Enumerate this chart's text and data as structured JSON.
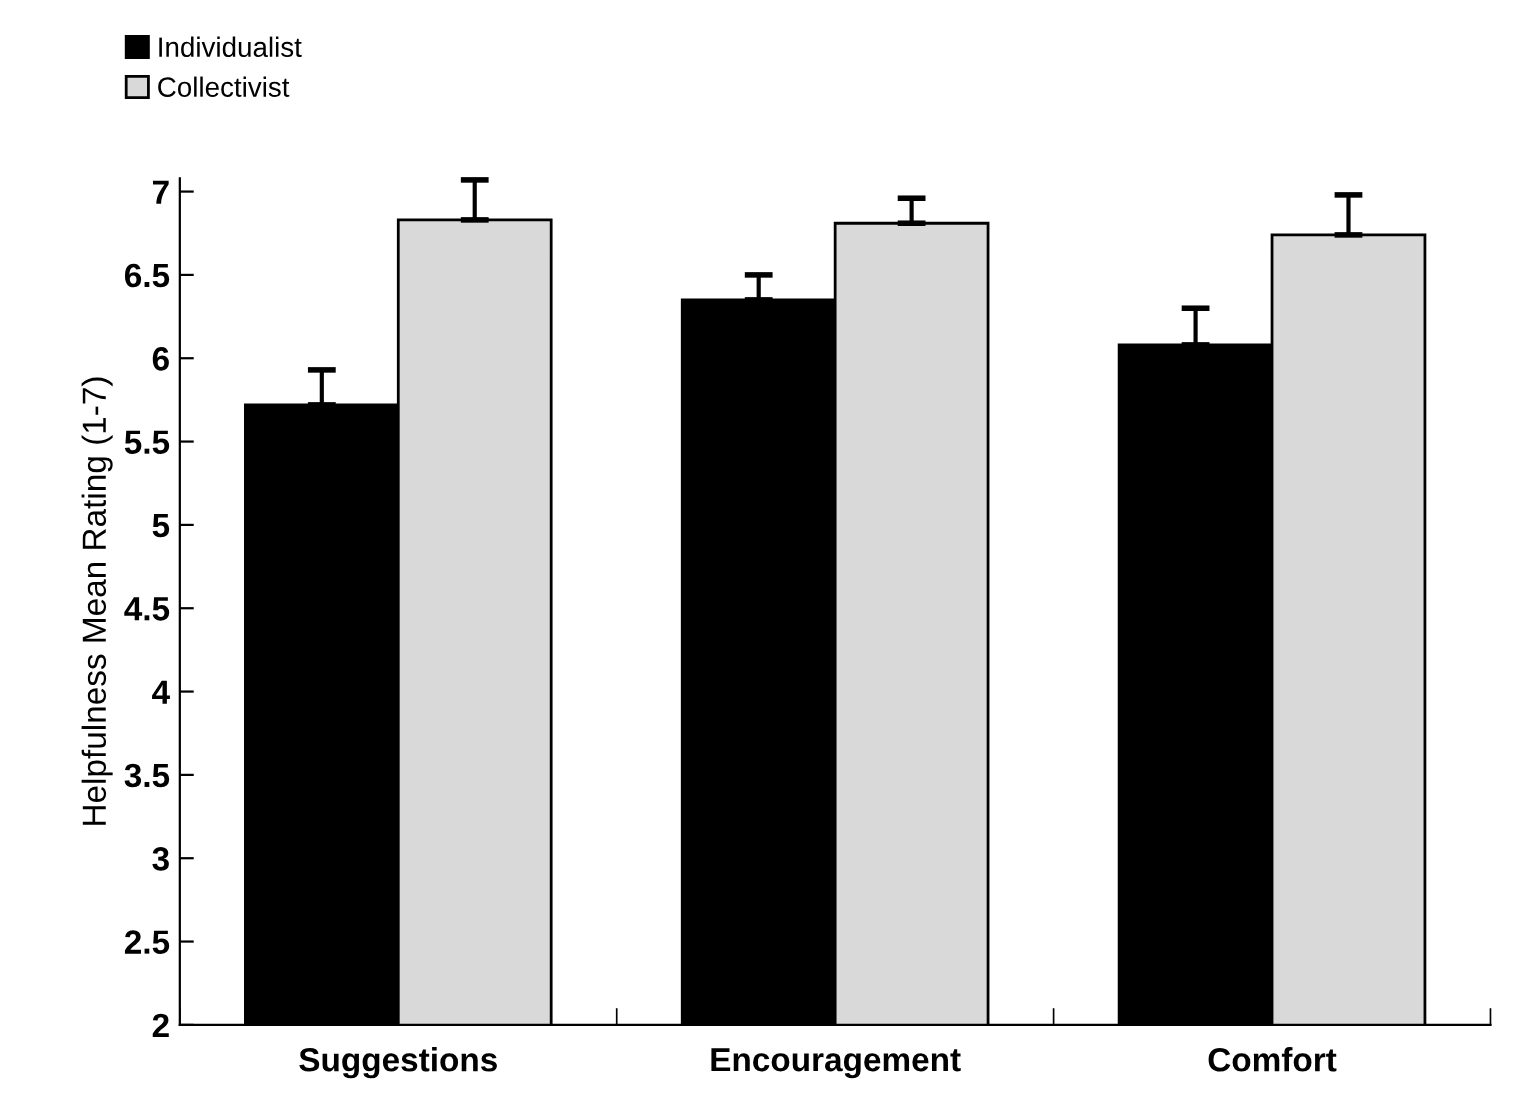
{
  "chart_data": {
    "type": "bar",
    "ylabel": "Helpfulness Mean Rating (1-7)",
    "categories": [
      "Suggestions",
      "Encouragement",
      "Comfort"
    ],
    "series": [
      {
        "name": "Individualist",
        "color": "#000000",
        "values": [
          5.72,
          6.35,
          6.08
        ],
        "errors": [
          [
            5.72,
            5.93
          ],
          [
            6.35,
            6.5
          ],
          [
            6.08,
            6.3
          ]
        ]
      },
      {
        "name": "Collectivist",
        "color": "#d9d9d9",
        "values": [
          6.83,
          6.81,
          6.74
        ],
        "errors": [
          [
            6.83,
            7.07
          ],
          [
            6.81,
            6.96
          ],
          [
            6.74,
            6.98
          ]
        ]
      }
    ],
    "ylim": [
      2,
      7.08
    ],
    "yticks": [
      2,
      2.5,
      3,
      3.5,
      4,
      4.5,
      5,
      5.5,
      6,
      6.5,
      7
    ],
    "grid": false,
    "legend": "top left"
  }
}
